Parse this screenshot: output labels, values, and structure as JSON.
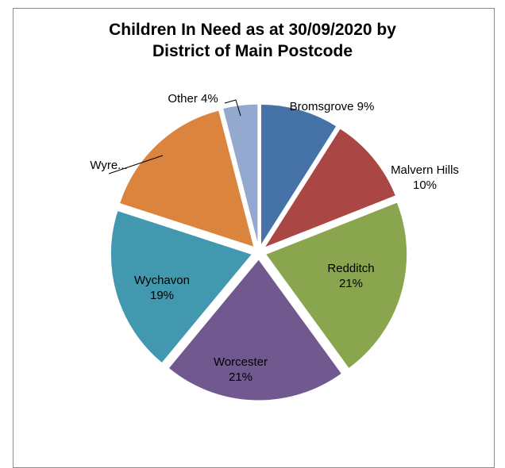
{
  "chart_data": {
    "type": "pie",
    "title_lines": [
      "Children In Need as at 30/09/2020 by",
      "District of Main Postcode"
    ],
    "slices": [
      {
        "name": "Bromsgrove",
        "value": 9,
        "label": "Bromsgrove 9%",
        "color": "#4572a7"
      },
      {
        "name": "Malvern Hills",
        "value": 10,
        "label": "Malvern Hills 10%",
        "color": "#aa4643"
      },
      {
        "name": "Redditch",
        "value": 21,
        "label": "Redditch 21%",
        "color": "#89a54e"
      },
      {
        "name": "Worcester",
        "value": 21,
        "label": "Worcester 21%",
        "color": "#71588f"
      },
      {
        "name": "Wychavon",
        "value": 19,
        "label": "Wychavon 19%",
        "color": "#4198af"
      },
      {
        "name": "Wyre...",
        "value": 16,
        "label": "Wyre...",
        "color": "#db843d"
      },
      {
        "name": "Other",
        "value": 4,
        "label": "Other 4%",
        "color": "#93a9cf"
      }
    ],
    "legend": "none",
    "exploded": true
  }
}
